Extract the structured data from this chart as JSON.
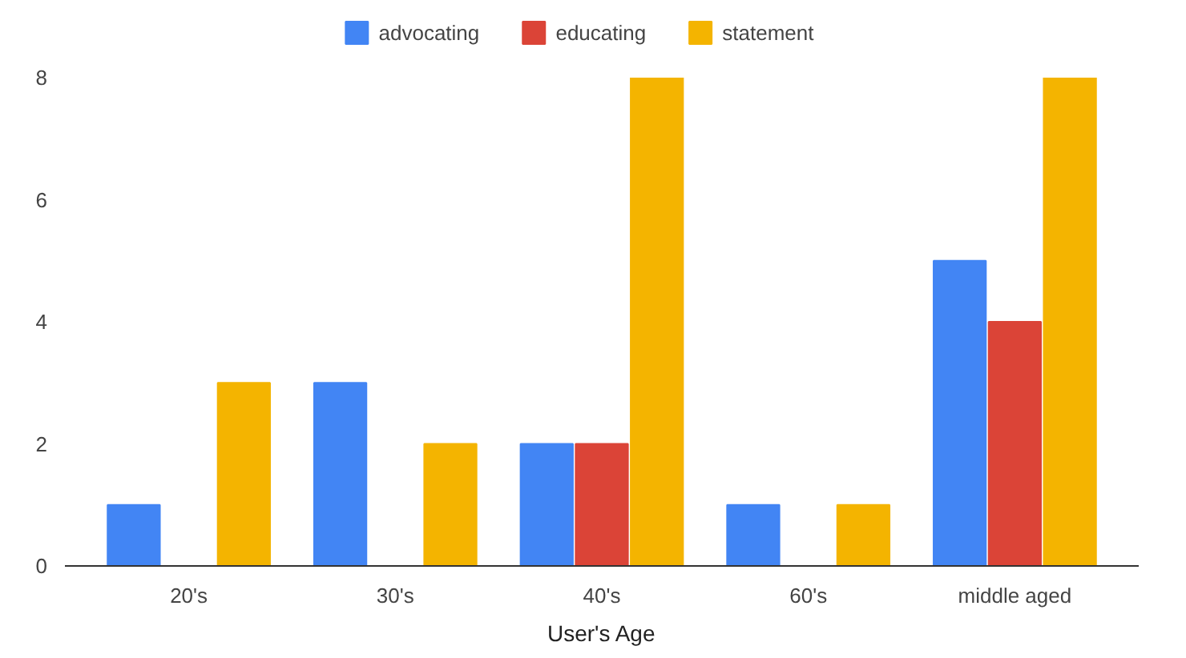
{
  "chart_data": {
    "type": "bar",
    "xlabel": "User's Age",
    "categories": [
      "20's",
      "30's",
      "40's",
      "60's",
      "middle aged"
    ],
    "series": [
      {
        "name": "advocating",
        "color": "#4285f4",
        "values": [
          1,
          3,
          2,
          1,
          5
        ]
      },
      {
        "name": "educating",
        "color": "#db4437",
        "values": [
          null,
          null,
          2,
          null,
          4
        ]
      },
      {
        "name": "statement",
        "color": "#f4b400",
        "values": [
          3,
          2,
          8,
          1,
          8
        ]
      }
    ],
    "ylim": [
      0,
      8
    ],
    "yticks": [
      0,
      2,
      4,
      6,
      8
    ],
    "grid": false,
    "legend": "top"
  }
}
